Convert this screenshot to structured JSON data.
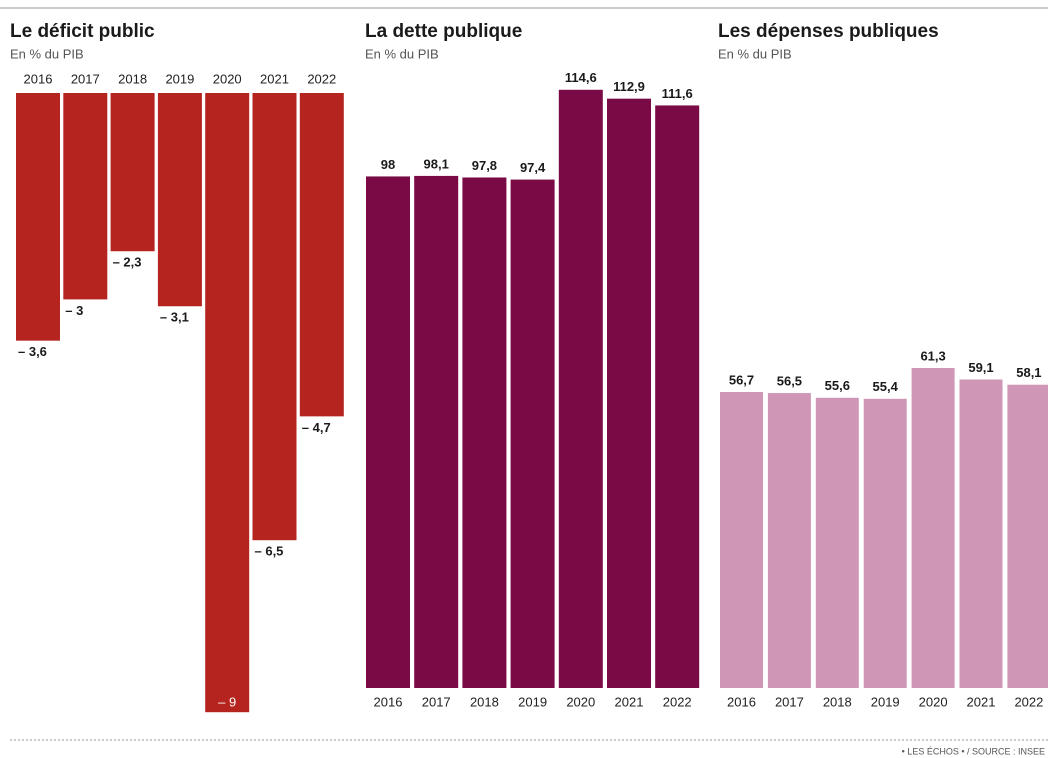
{
  "chart_data": [
    {
      "type": "bar",
      "title": "Le déficit public",
      "subtitle": "En % du PIB",
      "categories": [
        "2016",
        "2017",
        "2018",
        "2019",
        "2020",
        "2021",
        "2022"
      ],
      "values": [
        -3.6,
        -3,
        -2.3,
        -3.1,
        -9,
        -6.5,
        -4.7
      ],
      "value_labels": [
        "– 3,6",
        "– 3",
        "– 2,3",
        "– 3,1",
        "– 9",
        "– 6,5",
        "– 4,7"
      ],
      "color": "#b5241e"
    },
    {
      "type": "bar",
      "title": "La dette publique",
      "subtitle": "En % du PIB",
      "categories": [
        "2016",
        "2017",
        "2018",
        "2019",
        "2020",
        "2021",
        "2022"
      ],
      "values": [
        98,
        98.1,
        97.8,
        97.4,
        114.6,
        112.9,
        111.6
      ],
      "value_labels": [
        "98",
        "98,1",
        "97,8",
        "97,4",
        "114,6",
        "112,9",
        "111,6"
      ],
      "color": "#7a0a45"
    },
    {
      "type": "bar",
      "title": "Les dépenses publiques",
      "subtitle": "En % du PIB",
      "categories": [
        "2016",
        "2017",
        "2018",
        "2019",
        "2020",
        "2021",
        "2022"
      ],
      "values": [
        56.7,
        56.5,
        55.6,
        55.4,
        61.3,
        59.1,
        58.1
      ],
      "value_labels": [
        "56,7",
        "56,5",
        "55,6",
        "55,4",
        "61,3",
        "59,1",
        "58,1"
      ],
      "color": "#cf97b5"
    }
  ],
  "source": "• LES ÉCHOS • / SOURCE : INSEE"
}
